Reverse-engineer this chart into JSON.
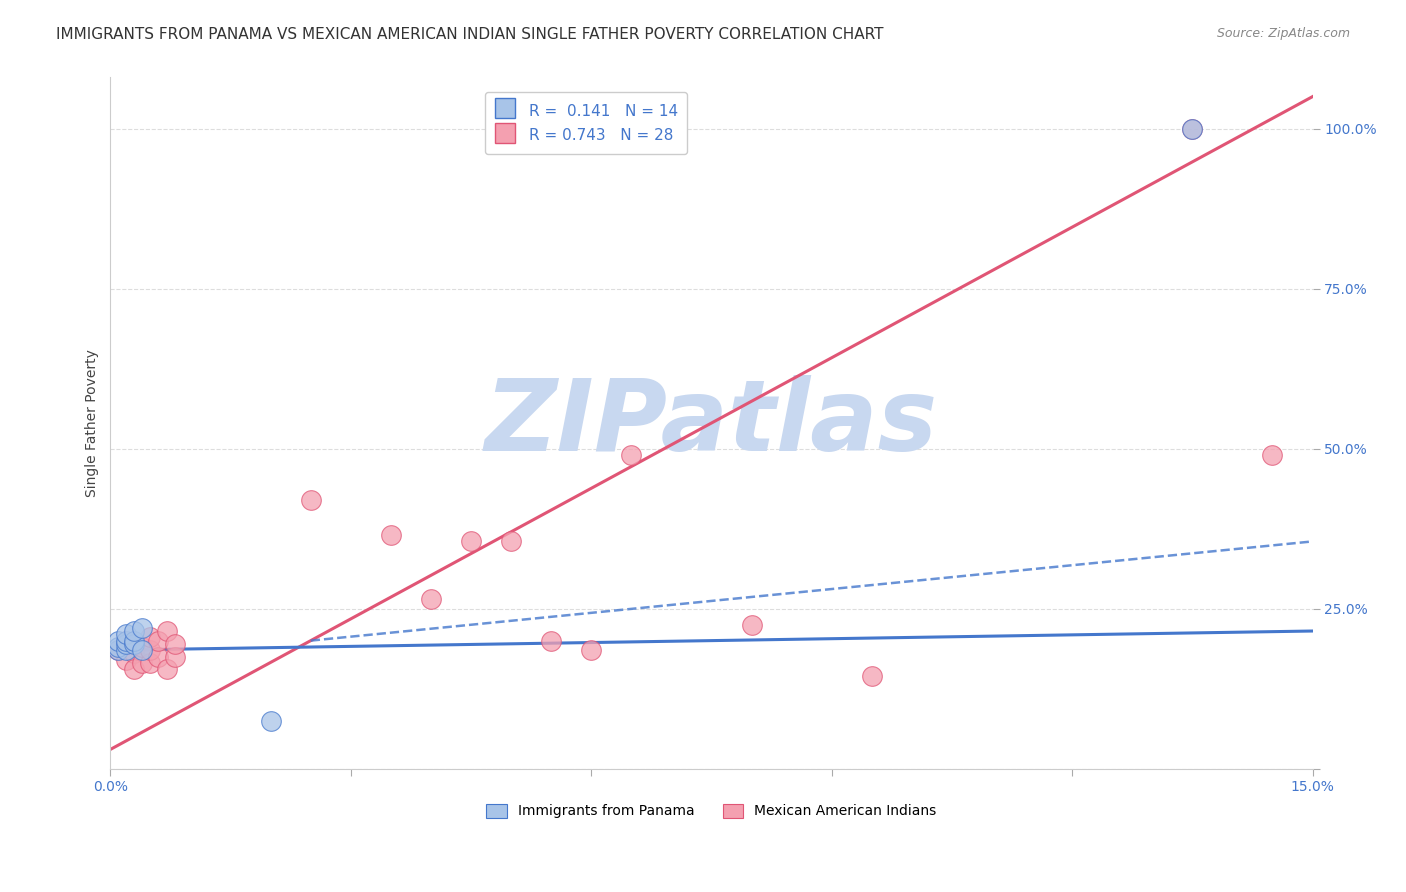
{
  "title": "IMMIGRANTS FROM PANAMA VS MEXICAN AMERICAN INDIAN SINGLE FATHER POVERTY CORRELATION CHART",
  "source": "Source: ZipAtlas.com",
  "ylabel": "Single Father Poverty",
  "background_color": "#ffffff",
  "grid_color": "#dddddd",
  "watermark": "ZIPatlas",
  "watermark_color": "#c8d8f0",
  "panama_R": 0.141,
  "panama_N": 14,
  "mexican_R": 0.743,
  "mexican_N": 28,
  "panama_color": "#a8c4e8",
  "mexican_color": "#f4a0b0",
  "panama_edge_color": "#4477cc",
  "mexican_edge_color": "#e05575",
  "xlim": [
    0.0,
    0.15
  ],
  "ylim": [
    0.0,
    1.08
  ],
  "panama_scatter_x": [
    0.001,
    0.001,
    0.001,
    0.002,
    0.002,
    0.002,
    0.002,
    0.003,
    0.003,
    0.003,
    0.004,
    0.004,
    0.02,
    0.135
  ],
  "panama_scatter_y": [
    0.185,
    0.19,
    0.2,
    0.185,
    0.195,
    0.2,
    0.21,
    0.195,
    0.2,
    0.215,
    0.185,
    0.22,
    0.075,
    1.0
  ],
  "mexican_scatter_x": [
    0.001,
    0.002,
    0.002,
    0.003,
    0.003,
    0.004,
    0.004,
    0.005,
    0.005,
    0.005,
    0.006,
    0.006,
    0.007,
    0.007,
    0.008,
    0.008,
    0.025,
    0.035,
    0.04,
    0.045,
    0.05,
    0.055,
    0.06,
    0.065,
    0.08,
    0.095,
    0.135,
    0.145
  ],
  "mexican_scatter_y": [
    0.185,
    0.17,
    0.2,
    0.18,
    0.155,
    0.165,
    0.19,
    0.165,
    0.185,
    0.205,
    0.175,
    0.2,
    0.155,
    0.215,
    0.175,
    0.195,
    0.42,
    0.365,
    0.265,
    0.355,
    0.355,
    0.2,
    0.185,
    0.49,
    0.225,
    0.145,
    1.0,
    0.49
  ],
  "panama_line_x": [
    0.0,
    0.15
  ],
  "panama_line_y": [
    0.185,
    0.215
  ],
  "panama_dashed_line_x": [
    0.025,
    0.15
  ],
  "panama_dashed_line_y": [
    0.2,
    0.355
  ],
  "mexican_line_x": [
    0.0,
    0.15
  ],
  "mexican_line_y": [
    0.03,
    1.05
  ],
  "x_ticks": [
    0.0,
    0.03,
    0.06,
    0.09,
    0.12,
    0.15
  ],
  "x_tick_labels": [
    "0.0%",
    "",
    "",
    "",
    "",
    "15.0%"
  ],
  "y_ticks": [
    0.0,
    0.25,
    0.5,
    0.75,
    1.0
  ],
  "y_tick_labels": [
    "",
    "25.0%",
    "50.0%",
    "75.0%",
    "100.0%"
  ],
  "title_fontsize": 11,
  "axis_label_fontsize": 10,
  "tick_fontsize": 10,
  "legend_fontsize": 11
}
